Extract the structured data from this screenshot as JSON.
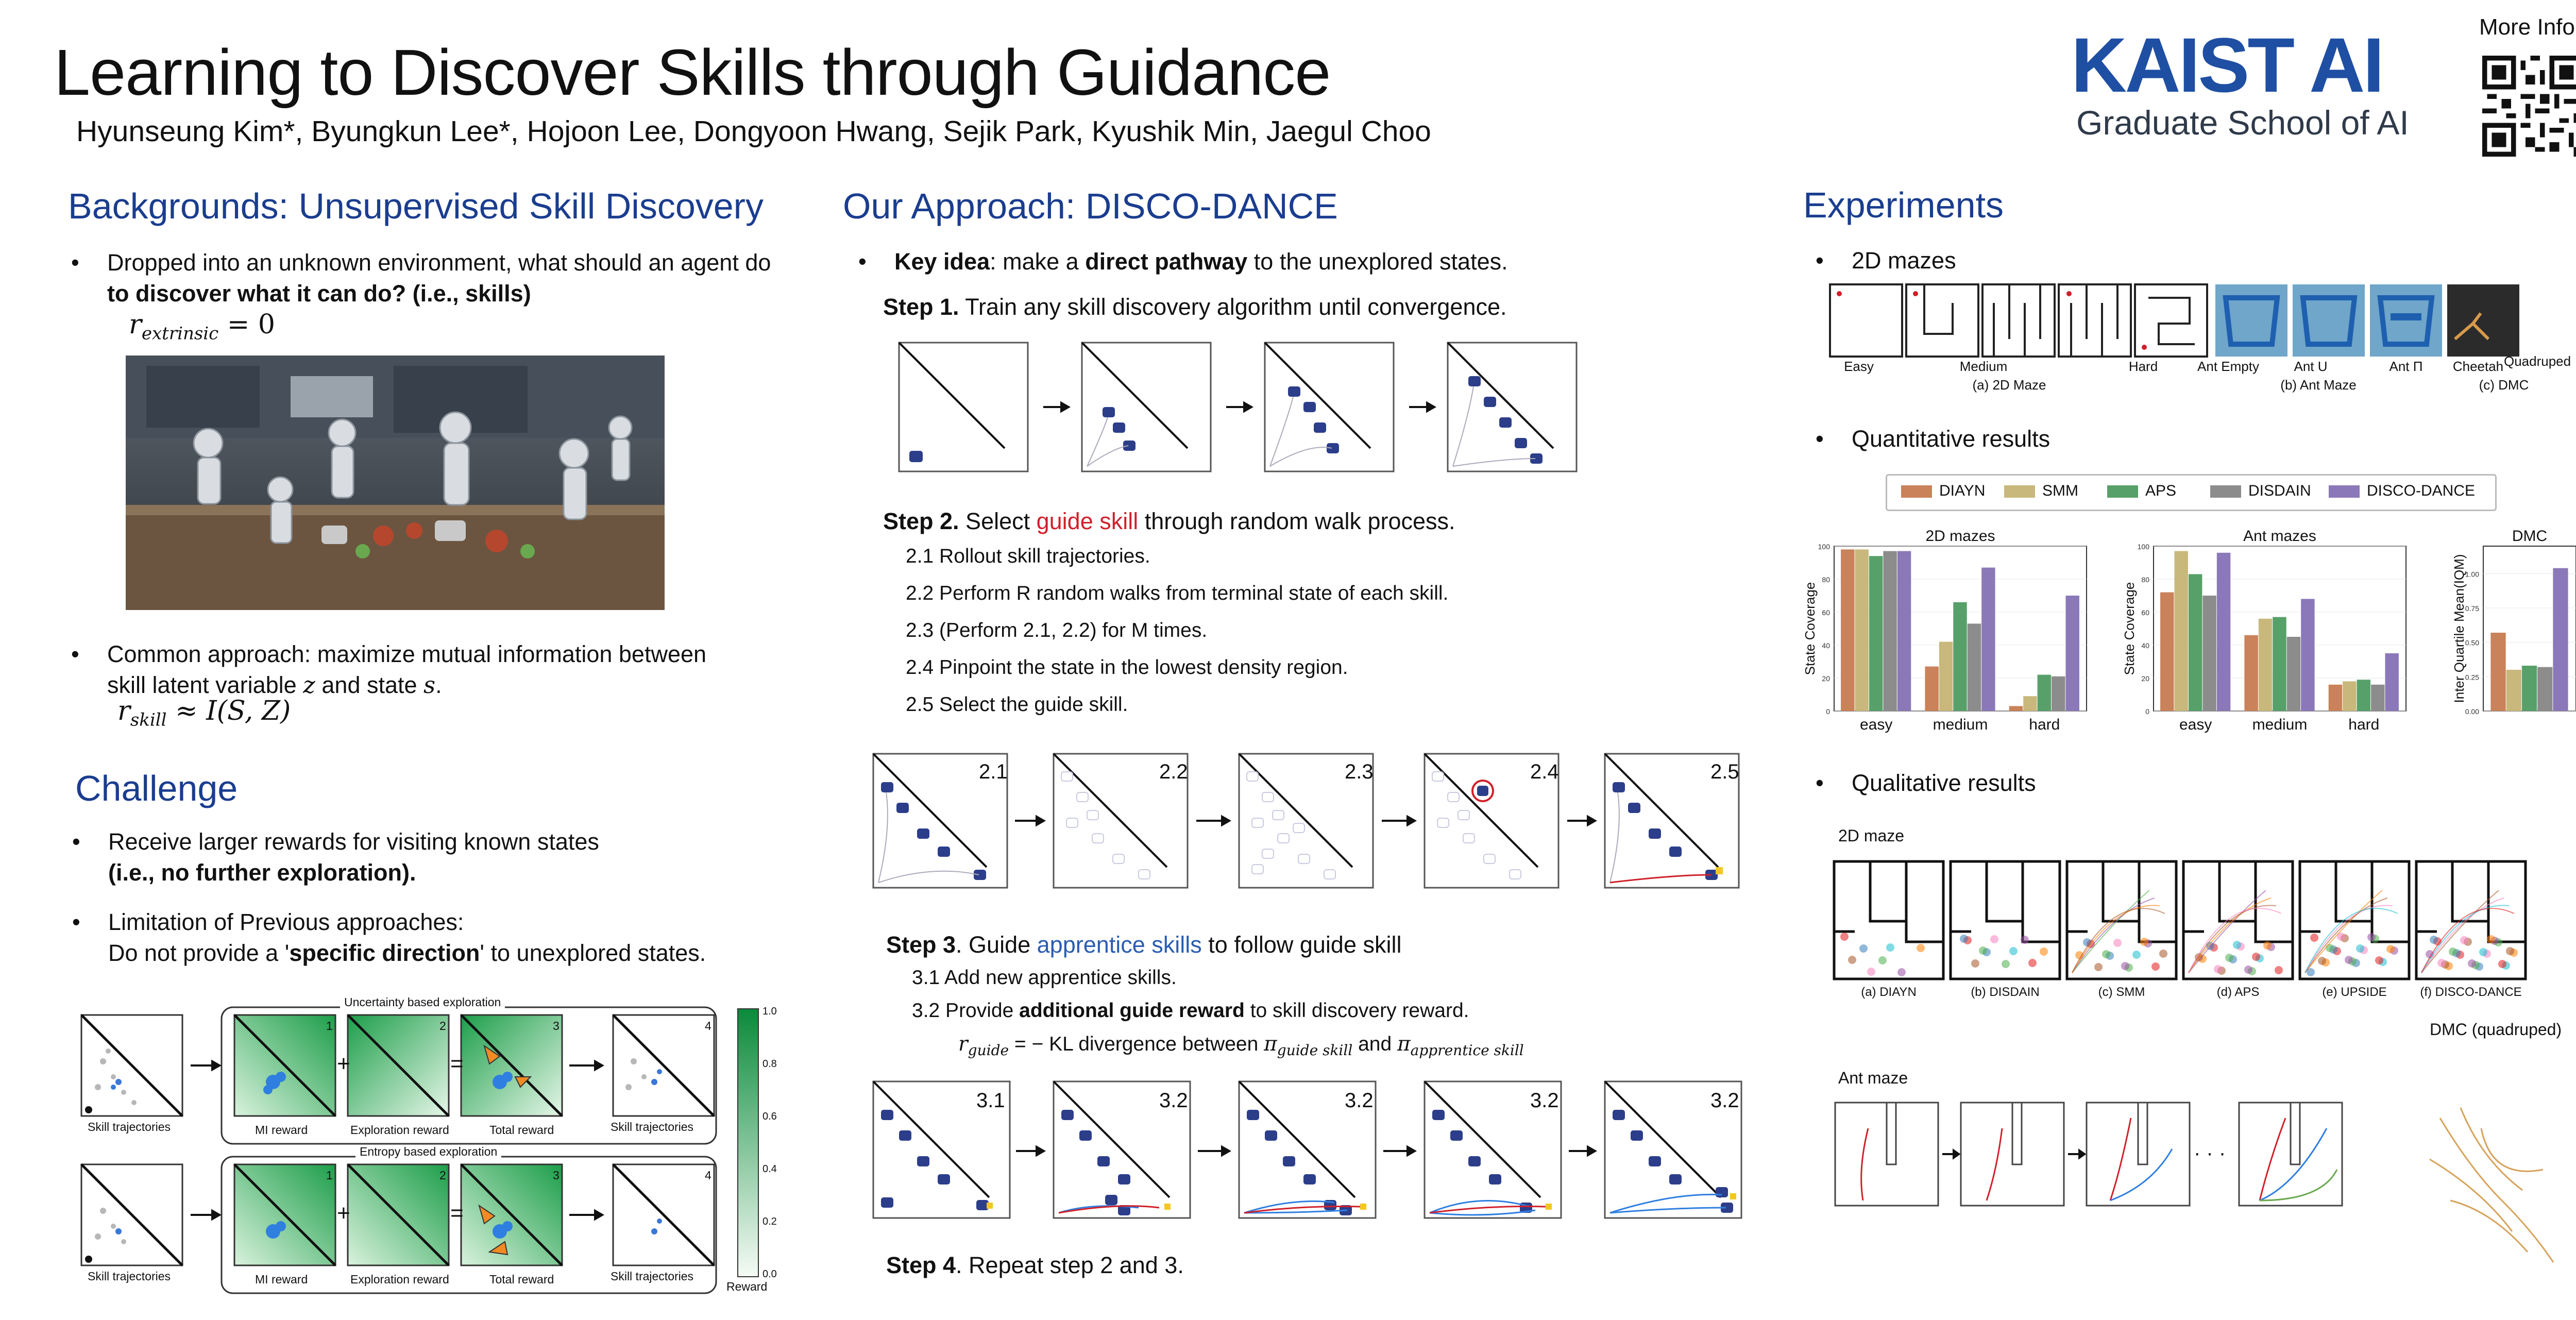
{
  "header": {
    "title": "Learning to Discover Skills through Guidance",
    "authors": "Hyunseung Kim*, Byungkun Lee*, Hojoon Lee, Dongyoon Hwang, Sejik Park, Kyushik Min, Jaegul Choo",
    "logo_text": "KAIST AI",
    "logo_sub": "Graduate School of AI",
    "more_info": "More Info",
    "brand_color": "#1f4fa3"
  },
  "backgrounds": {
    "heading": "Backgrounds: Unsupervised Skill Discovery",
    "b1_line1": "Dropped into an unknown environment, what should an agent do",
    "b1_line2": "to discover what it can do? (i.e., skills)",
    "eq1_lhs": "r",
    "eq1_sub": "extrinsic",
    "eq1_rhs": " = 0",
    "b2_line1": "Common approach: maximize mutual information between",
    "b2_line2_a": "skill latent variable ",
    "b2_var_z": "z",
    "b2_line2_b": " and state ",
    "b2_var_s": "s",
    "b2_line2_c": ".",
    "eq2_lhs": "r",
    "eq2_sub": "skill",
    "eq2_rhs": " ≈ I(S, Z)"
  },
  "challenge": {
    "heading": "Challenge",
    "c1_line1": "Receive larger rewards for visiting known states",
    "c1_line2": "(i.e., no further exploration).",
    "c2_line1": "Limitation of Previous approaches:",
    "c2_line2_a": "Do not provide a '",
    "c2_line2_b": "specific direction",
    "c2_line2_c": "' to unexplored states.",
    "group1_title": "Uncertainty based exploration",
    "group2_title": "Entropy based exploration",
    "lbl_skill_traj": "Skill trajectories",
    "lbl_mi": "MI reward",
    "lbl_expl": "Exploration reward",
    "lbl_total": "Total reward",
    "lbl_skill_traj2": "Skill trajectories",
    "num1": "1",
    "num2": "2",
    "num3": "3",
    "num4": "4",
    "op_plus": "+",
    "op_eq": "=",
    "colorbar_label": "Reward",
    "colorbar_ticks": [
      "1.0",
      "0.8",
      "0.6",
      "0.4",
      "0.2",
      "0.0"
    ]
  },
  "approach": {
    "heading": "Our Approach: DISCO-DANCE",
    "key_idea_a": "Key idea",
    "key_idea_b": ": make a ",
    "key_idea_c": "direct pathway",
    "key_idea_d": " to the unexplored states.",
    "step1_a": "Step 1.",
    "step1_b": " Train any skill discovery algorithm until convergence.",
    "step2_a": "Step 2.",
    "step2_b": " Select ",
    "step2_c": "guide skill",
    "step2_d": " through random walk process.",
    "s21": "2.1 Rollout skill trajectories.",
    "s22": "2.2 Perform R random walks from terminal state of each skill.",
    "s23": "2.3 (Perform 2.1, 2.2) for M times.",
    "s24": "2.4 Pinpoint the state in the lowest density region.",
    "s25": "2.5 Select the guide skill.",
    "p21": "2.1",
    "p22": "2.2",
    "p23": "2.3",
    "p24": "2.4",
    "p25": "2.5",
    "step3_a": "Step 3",
    "step3_b": ". Guide ",
    "step3_c": "apprentice skills",
    "step3_d": " to follow guide skill",
    "s31": "3.1 Add new apprentice skills.",
    "s32_a": "3.2 Provide ",
    "s32_b": "additional guide reward",
    "s32_c": " to skill discovery reward.",
    "eq3_lhs": "r",
    "eq3_sub": "guide",
    "eq3_mid": " = − KL divergence between ",
    "eq3_pi1": "π",
    "eq3_pi1_sub": "guide skill",
    "eq3_and": " and ",
    "eq3_pi2": "π",
    "eq3_pi2_sub": "apprentice skill",
    "p31": "3.1",
    "p32a": "3.2",
    "p32b": "3.2",
    "p32c": "3.2",
    "p32d": "3.2",
    "step4_a": "Step 4",
    "step4_b": ". Repeat step 2 and 3."
  },
  "experiments": {
    "heading": "Experiments",
    "b_mazes": "2D mazes",
    "b_quant": "Quantitative results",
    "b_qual": "Qualitative results",
    "env_easy": "Easy",
    "env_medium": "Medium",
    "env_hard": "Hard",
    "env_ant_empty": "Ant Empty",
    "env_ant_u": "Ant U",
    "env_ant_pi": "Ant Π",
    "env_cheetah": "Cheetah",
    "env_quadruped": "Quadruped",
    "cap_2d": "(a) 2D Maze",
    "cap_ant": "(b) Ant Maze",
    "cap_dmc": "(c) DMC",
    "qual_2d_label": "2D maze",
    "qual_ant_label": "Ant maze",
    "qual_dmc_label": "DMC (quadruped)",
    "ellipsis": "· · ·",
    "qual_caps": [
      "(a) DIAYN",
      "(b) DISDAIN",
      "(c) SMM",
      "(d) APS",
      "(e) UPSIDE",
      "(f) DISCO-DANCE"
    ]
  },
  "chart_data": [
    {
      "type": "bar",
      "title": "2D mazes",
      "ylabel": "State Coverage",
      "categories": [
        "easy",
        "medium",
        "hard"
      ],
      "ylim": [
        0,
        100
      ],
      "yticks": [
        "0",
        "20",
        "40",
        "60",
        "80",
        "100"
      ],
      "series": [
        {
          "name": "DIAYN",
          "color": "#c9825a",
          "values": [
            98,
            27,
            3
          ]
        },
        {
          "name": "SMM",
          "color": "#c8b87c",
          "values": [
            98,
            42,
            9
          ]
        },
        {
          "name": "APS",
          "color": "#58a06a",
          "values": [
            94,
            66,
            22
          ]
        },
        {
          "name": "DISDAIN",
          "color": "#8c8c8c",
          "values": [
            97,
            53,
            21
          ]
        },
        {
          "name": "DISCO-DANCE",
          "color": "#8b78b8",
          "values": [
            97,
            87,
            70
          ]
        }
      ]
    },
    {
      "type": "bar",
      "title": "Ant mazes",
      "ylabel": "State Coverage",
      "categories": [
        "easy",
        "medium",
        "hard"
      ],
      "ylim": [
        0,
        100
      ],
      "yticks": [
        "0",
        "20",
        "40",
        "60",
        "80",
        "100"
      ],
      "series": [
        {
          "name": "DIAYN",
          "color": "#c9825a",
          "values": [
            72,
            46,
            16
          ]
        },
        {
          "name": "SMM",
          "color": "#c8b87c",
          "values": [
            97,
            56,
            18
          ]
        },
        {
          "name": "APS",
          "color": "#58a06a",
          "values": [
            83,
            57,
            19
          ]
        },
        {
          "name": "DISDAIN",
          "color": "#8c8c8c",
          "values": [
            70,
            45,
            16
          ]
        },
        {
          "name": "DISCO-DANCE",
          "color": "#8b78b8",
          "values": [
            96,
            68,
            35
          ]
        }
      ]
    },
    {
      "type": "bar",
      "title": "DMC",
      "ylabel": "Inter Quartile Mean(IQM)",
      "categories": [
        ""
      ],
      "ylim": [
        0,
        1.2
      ],
      "yticks": [
        "0.00",
        "0.25",
        "0.50",
        "0.75",
        "1.00"
      ],
      "series": [
        {
          "name": "DIAYN",
          "color": "#c9825a",
          "values": [
            0.57
          ]
        },
        {
          "name": "SMM",
          "color": "#c8b87c",
          "values": [
            0.3
          ]
        },
        {
          "name": "APS",
          "color": "#58a06a",
          "values": [
            0.33
          ]
        },
        {
          "name": "DISDAIN",
          "color": "#8c8c8c",
          "values": [
            0.32
          ]
        },
        {
          "name": "DISCO-DANCE",
          "color": "#8b78b8",
          "values": [
            1.04
          ]
        }
      ]
    }
  ]
}
